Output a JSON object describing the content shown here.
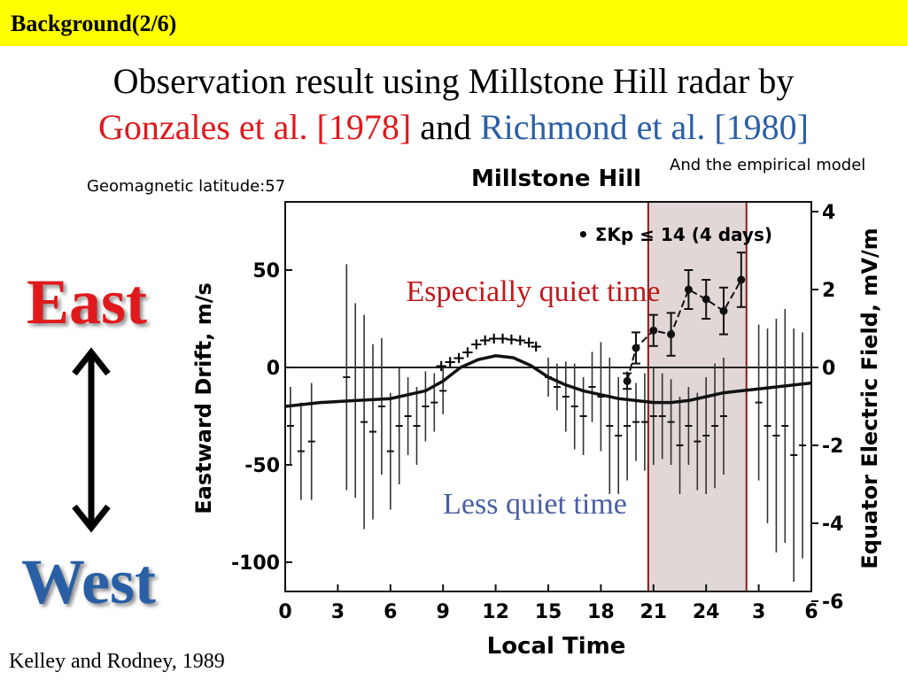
{
  "slide": {
    "header": "Background(2/6)",
    "title_line1": "Observation result using Millstone Hill radar by",
    "title_ref1": "Gonzales et al. [1978]",
    "title_and": "and",
    "title_ref2": "Richmond et al. [1980]",
    "geomagnetic_latitude": "Geomagnetic latitude:57",
    "empirical_note": "And the empirical model",
    "citation": "Kelley and Rodney, 1989",
    "east_label": "East",
    "west_label": "West",
    "accent_red": "#e0191c",
    "accent_blue": "#2a5fa6",
    "header_bg": "#ffff00"
  },
  "chart_data": {
    "type": "scatter",
    "title": "Millstone Hill",
    "xlabel": "Local Time",
    "ylabel": "Eastward Drift, m/s",
    "y2label": "Equator Electric Field, mV/m",
    "xticks": [
      "0",
      "3",
      "6",
      "9",
      "12",
      "15",
      "18",
      "21",
      "24",
      "3",
      "6"
    ],
    "yticks": [
      "50",
      "0",
      "-50",
      "-100"
    ],
    "y2ticks": [
      "4",
      "2",
      "0",
      "-2",
      "-4",
      "-6"
    ],
    "xlim": [
      0,
      30
    ],
    "ylim": [
      -115,
      85
    ],
    "legend": "• ΣKp ≤ 14 (4 days)",
    "annotation_quiet": "Especially quiet time",
    "annotation_less": "Less quiet time",
    "highlight_region": [
      20.7,
      26.3
    ],
    "series": [
      {
        "name": "ΣKp ≤ 14 (4 days)",
        "x": [
          19.5,
          20,
          21,
          22,
          23,
          24,
          25,
          26
        ],
        "y": [
          -7,
          10,
          19,
          17,
          40,
          35,
          29,
          45
        ],
        "err": [
          4,
          8,
          8,
          11,
          10,
          10,
          12,
          14
        ]
      },
      {
        "name": "",
        "x": [
          8.9,
          9.4,
          9.9,
          10.4,
          10.9,
          11.4,
          11.9,
          12.4,
          12.9,
          13.4,
          13.9,
          14.3
        ],
        "y": [
          1,
          3,
          5,
          8,
          12,
          14,
          15,
          15,
          14.5,
          14,
          13,
          11
        ]
      },
      {
        "name": "",
        "x": [
          0.3,
          0.9,
          1.5,
          3.5,
          4,
          4.5,
          5,
          5.5,
          6,
          6.5,
          7,
          7.5,
          8,
          8.5,
          9,
          15,
          15.5,
          16,
          16.5,
          17,
          17.5,
          18,
          18.5,
          19,
          19.5,
          20,
          20.5,
          21,
          21.5,
          22,
          22.5,
          23,
          23.5,
          24,
          24.5,
          25,
          27,
          27.5,
          28,
          28.5,
          29,
          29.5
        ],
        "y": [
          -30,
          -43,
          -38,
          -5,
          -17,
          -28,
          -33,
          -20,
          -43,
          -30,
          -25,
          -30,
          -20,
          -18,
          -12,
          -5,
          -10,
          -15,
          -20,
          -25,
          -10,
          -15,
          -30,
          -35,
          -30,
          -28,
          -28,
          -25,
          -25,
          -28,
          -40,
          -30,
          -38,
          -35,
          -30,
          -25,
          -18,
          -30,
          -35,
          -30,
          -45,
          -40
        ],
        "err": [
          20,
          25,
          30,
          58,
          50,
          55,
          45,
          35,
          30,
          30,
          20,
          20,
          18,
          15,
          12,
          10,
          12,
          18,
          22,
          20,
          18,
          28,
          35,
          30,
          28,
          20,
          25,
          25,
          22,
          22,
          25,
          20,
          25,
          30,
          32,
          30,
          40,
          50,
          60,
          60,
          65,
          58
        ]
      },
      {
        "name": "empirical model",
        "x": [
          0,
          2,
          4,
          6,
          8,
          9,
          10,
          11,
          12,
          13,
          14,
          15,
          16,
          17,
          18,
          19,
          20,
          21,
          22,
          23,
          24,
          25,
          26,
          27,
          28,
          29,
          30
        ],
        "y": [
          -20,
          -18,
          -17,
          -16,
          -12,
          -7,
          0,
          4,
          6,
          5,
          1,
          -5,
          -9,
          -12,
          -14,
          -16,
          -17,
          -18,
          -18,
          -17,
          -15,
          -13,
          -12,
          -11,
          -10,
          -9,
          -8
        ]
      }
    ]
  }
}
